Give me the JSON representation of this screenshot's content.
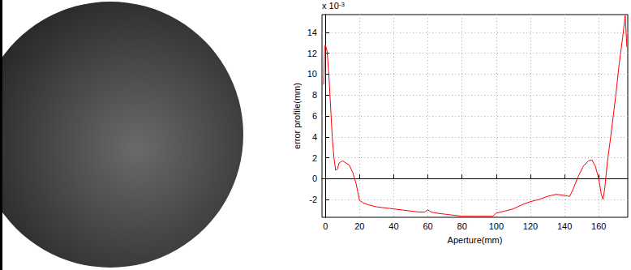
{
  "chart_data": {
    "type": "line",
    "x_label": "Aperture(mm)",
    "y_label": "error profile(mm)",
    "annotation": {
      "text": "x 10",
      "exponent": "-3"
    },
    "x": [
      -1,
      -0.5,
      0,
      1,
      2,
      3,
      4,
      5,
      6,
      7,
      8,
      9,
      10,
      12,
      14,
      16,
      18,
      20,
      22,
      25,
      30,
      40,
      50,
      55,
      58,
      60,
      62,
      65,
      70,
      80,
      90,
      98,
      100,
      105,
      110,
      115,
      120,
      125,
      130,
      135,
      140,
      143,
      145,
      148,
      151,
      154,
      156,
      158,
      160,
      161.5,
      162.5,
      163.5,
      165,
      167,
      170,
      172,
      174,
      175.5,
      176.5
    ],
    "values": [
      9,
      12.7,
      12.8,
      12.2,
      10,
      7,
      4,
      2,
      0.8,
      0.9,
      1.5,
      1.6,
      1.7,
      1.5,
      1.3,
      0.6,
      -0.5,
      -2.1,
      -2.3,
      -2.5,
      -2.7,
      -2.9,
      -3.1,
      -3.2,
      -3.2,
      -3.0,
      -3.2,
      -3.3,
      -3.4,
      -3.6,
      -3.6,
      -3.6,
      -3.3,
      -3.1,
      -2.9,
      -2.5,
      -2.2,
      -2.0,
      -1.7,
      -1.5,
      -1.6,
      -1.7,
      -1.0,
      0.2,
      1.2,
      1.7,
      1.8,
      1.2,
      0,
      -1.5,
      -2.0,
      -1,
      1.5,
      4,
      8,
      11,
      13.5,
      15.6,
      12.6
    ],
    "color": "#ff0000",
    "xlim": [
      -2,
      177
    ],
    "xticks": [
      0,
      20,
      40,
      60,
      80,
      100,
      120,
      140,
      160
    ],
    "ylim": [
      -3.7,
      15.7
    ],
    "yticks": [
      -2,
      0,
      2,
      4,
      6,
      8,
      10,
      12,
      14
    ],
    "grid": true
  }
}
